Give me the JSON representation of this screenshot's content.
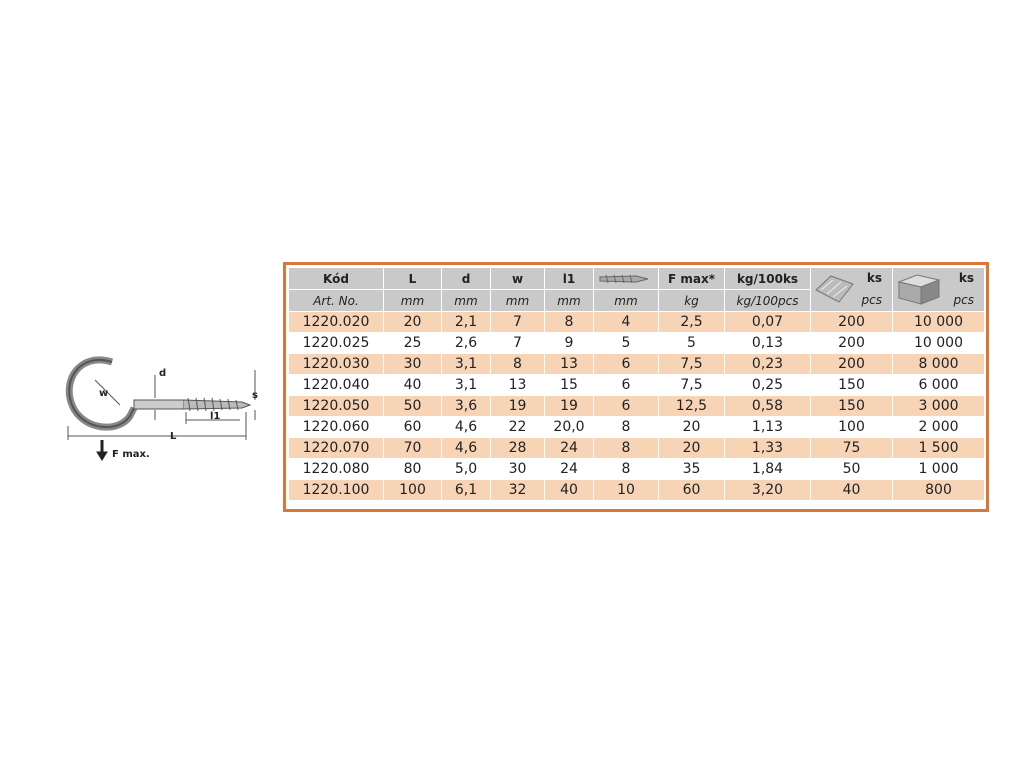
{
  "diagram": {
    "labels": {
      "w": "w",
      "d": "d",
      "s": "s",
      "l1": "l1",
      "L": "L",
      "fmax": "F max."
    }
  },
  "table": {
    "columns": [
      {
        "label": "Kód",
        "unit": "Art. No."
      },
      {
        "label": "L",
        "unit": "mm"
      },
      {
        "label": "d",
        "unit": "mm"
      },
      {
        "label": "w",
        "unit": "mm"
      },
      {
        "label": "l1",
        "unit": "mm"
      },
      {
        "unit": "mm"
      },
      {
        "label": "F max*",
        "unit": "kg"
      },
      {
        "label": "kg/100ks",
        "unit": "kg/100pcs"
      },
      {
        "label": "ks",
        "unit": "pcs"
      },
      {
        "label": "ks",
        "unit": "pcs"
      }
    ],
    "rows": [
      [
        "1220.020",
        "20",
        "2,1",
        "7",
        "8",
        "4",
        "2,5",
        "0,07",
        "200",
        "10 000"
      ],
      [
        "1220.025",
        "25",
        "2,6",
        "7",
        "9",
        "5",
        "5",
        "0,13",
        "200",
        "10 000"
      ],
      [
        "1220.030",
        "30",
        "3,1",
        "8",
        "13",
        "6",
        "7,5",
        "0,23",
        "200",
        "8 000"
      ],
      [
        "1220.040",
        "40",
        "3,1",
        "13",
        "15",
        "6",
        "7,5",
        "0,25",
        "150",
        "6 000"
      ],
      [
        "1220.050",
        "50",
        "3,6",
        "19",
        "19",
        "6",
        "12,5",
        "0,58",
        "150",
        "3 000"
      ],
      [
        "1220.060",
        "60",
        "4,6",
        "22",
        "20,0",
        "8",
        "20",
        "1,13",
        "100",
        "2 000"
      ],
      [
        "1220.070",
        "70",
        "4,6",
        "28",
        "24",
        "8",
        "20",
        "1,33",
        "75",
        "1 500"
      ],
      [
        "1220.080",
        "80",
        "5,0",
        "30",
        "24",
        "8",
        "35",
        "1,84",
        "50",
        "1 000"
      ],
      [
        "1220.100",
        "100",
        "6,1",
        "32",
        "40",
        "10",
        "60",
        "3,20",
        "40",
        "800"
      ]
    ]
  }
}
